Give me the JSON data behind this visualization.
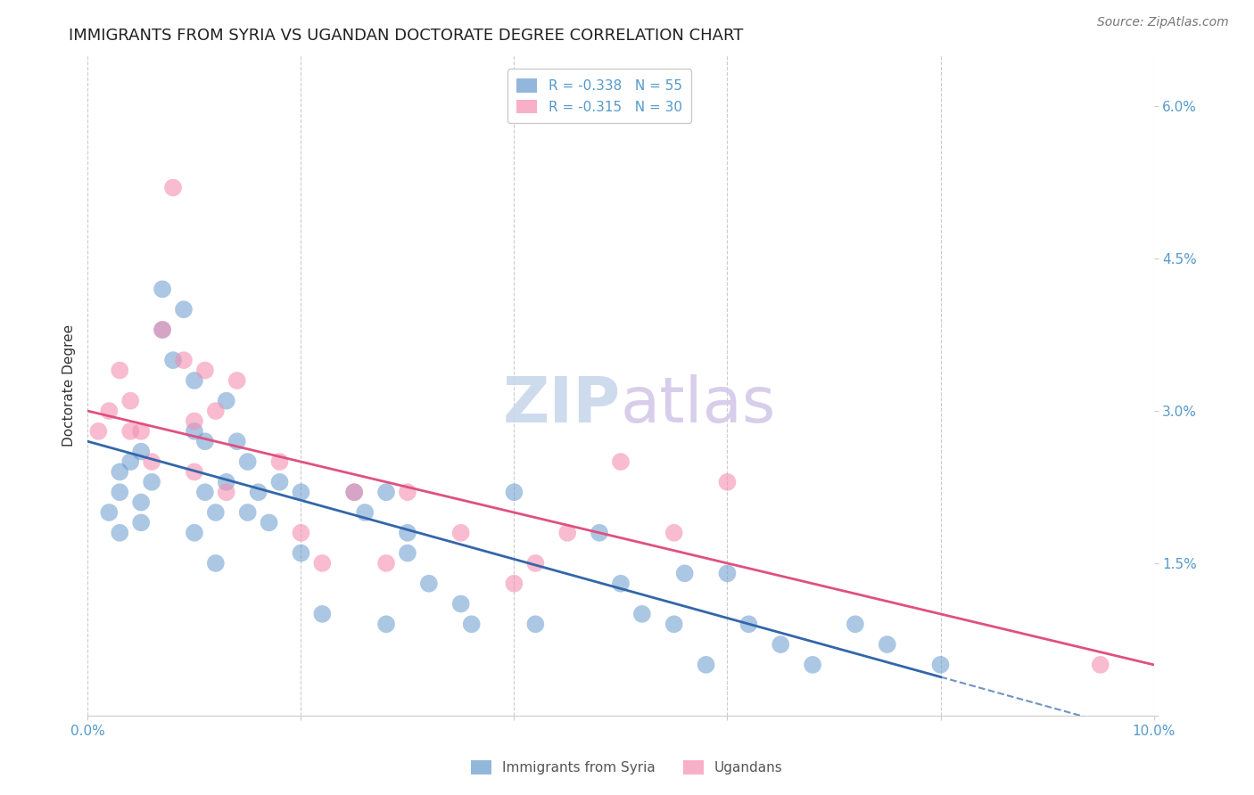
{
  "title": "IMMIGRANTS FROM SYRIA VS UGANDAN DOCTORATE DEGREE CORRELATION CHART",
  "source": "Source: ZipAtlas.com",
  "ylabel": "Doctorate Degree",
  "xlim": [
    0.0,
    0.1
  ],
  "ylim": [
    0.0,
    0.065
  ],
  "xtick_positions": [
    0.0,
    0.02,
    0.04,
    0.06,
    0.08,
    0.1
  ],
  "xtick_labels": [
    "0.0%",
    "",
    "",
    "",
    "",
    "10.0%"
  ],
  "ytick_positions": [
    0.0,
    0.015,
    0.03,
    0.045,
    0.06
  ],
  "ytick_labels": [
    "",
    "1.5%",
    "3.0%",
    "4.5%",
    "6.0%"
  ],
  "watermark_zip_color": "#c8d8ec",
  "watermark_atlas_color": "#d4c8e8",
  "syria_scatter_x": [
    0.002,
    0.003,
    0.003,
    0.003,
    0.004,
    0.005,
    0.005,
    0.005,
    0.006,
    0.007,
    0.007,
    0.008,
    0.009,
    0.01,
    0.01,
    0.01,
    0.011,
    0.011,
    0.012,
    0.012,
    0.013,
    0.013,
    0.014,
    0.015,
    0.015,
    0.016,
    0.017,
    0.018,
    0.02,
    0.02,
    0.022,
    0.025,
    0.026,
    0.028,
    0.028,
    0.03,
    0.03,
    0.032,
    0.035,
    0.036,
    0.04,
    0.042,
    0.048,
    0.05,
    0.052,
    0.055,
    0.056,
    0.058,
    0.06,
    0.062,
    0.065,
    0.068,
    0.072,
    0.075,
    0.08
  ],
  "syria_scatter_y": [
    0.02,
    0.022,
    0.018,
    0.024,
    0.025,
    0.021,
    0.026,
    0.019,
    0.023,
    0.042,
    0.038,
    0.035,
    0.04,
    0.033,
    0.018,
    0.028,
    0.022,
    0.027,
    0.02,
    0.015,
    0.023,
    0.031,
    0.027,
    0.02,
    0.025,
    0.022,
    0.019,
    0.023,
    0.022,
    0.016,
    0.01,
    0.022,
    0.02,
    0.022,
    0.009,
    0.016,
    0.018,
    0.013,
    0.011,
    0.009,
    0.022,
    0.009,
    0.018,
    0.013,
    0.01,
    0.009,
    0.014,
    0.005,
    0.014,
    0.009,
    0.007,
    0.005,
    0.009,
    0.007,
    0.005
  ],
  "uganda_scatter_x": [
    0.001,
    0.002,
    0.003,
    0.004,
    0.004,
    0.005,
    0.006,
    0.007,
    0.008,
    0.009,
    0.01,
    0.01,
    0.011,
    0.012,
    0.013,
    0.014,
    0.018,
    0.02,
    0.022,
    0.025,
    0.028,
    0.03,
    0.035,
    0.04,
    0.042,
    0.045,
    0.05,
    0.055,
    0.06,
    0.095
  ],
  "uganda_scatter_y": [
    0.028,
    0.03,
    0.034,
    0.031,
    0.028,
    0.028,
    0.025,
    0.038,
    0.052,
    0.035,
    0.029,
    0.024,
    0.034,
    0.03,
    0.022,
    0.033,
    0.025,
    0.018,
    0.015,
    0.022,
    0.015,
    0.022,
    0.018,
    0.013,
    0.015,
    0.018,
    0.025,
    0.018,
    0.023,
    0.005
  ],
  "syria_line_y_start": 0.027,
  "syria_line_y_end": -0.002,
  "uganda_line_y_start": 0.03,
  "uganda_line_y_end": 0.005,
  "syria_color": "#6699cc",
  "uganda_color": "#f48fb1",
  "trend_syria_color": "#3366aa",
  "trend_uganda_color": "#e05080",
  "background_color": "#ffffff",
  "grid_color": "#cccccc",
  "axis_color": "#5599cc",
  "title_fontsize": 13,
  "source_fontsize": 10,
  "legend_fontsize": 11,
  "label_fontsize": 11
}
